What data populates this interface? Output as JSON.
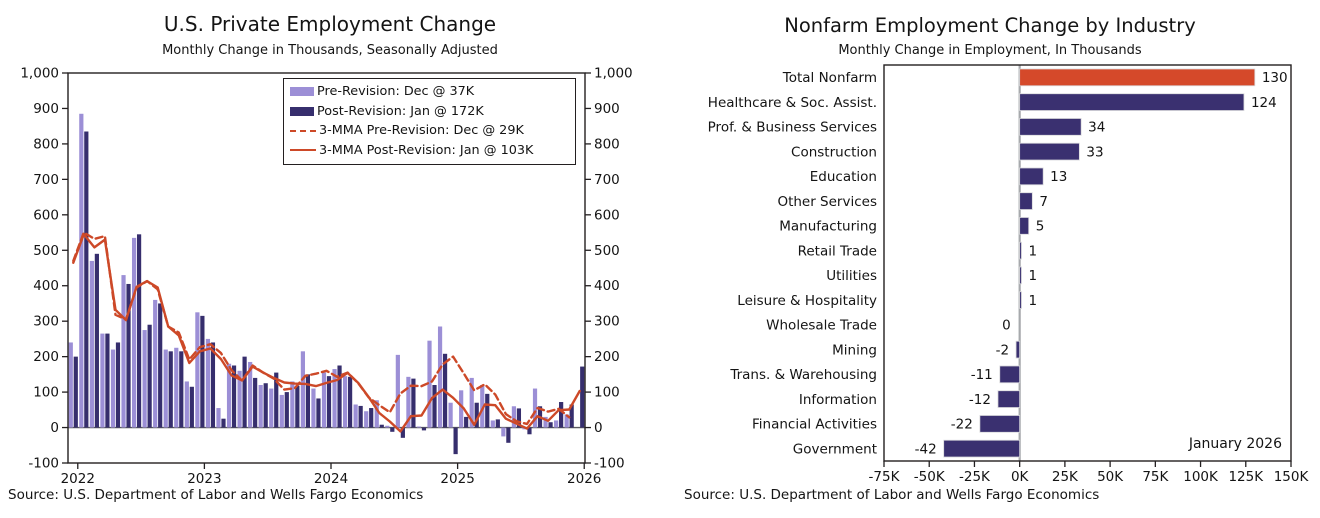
{
  "colors": {
    "pre_bar": "#9c8fd6",
    "post_bar": "#362e6d",
    "mma_line": "#cd4928",
    "industry_bar": "#3a3070",
    "industry_highlight": "#d5492a",
    "axis": "#231f20",
    "zero_line_left": "#5b5b5f",
    "zero_line_right": "#a7a9ac"
  },
  "chart_data": [
    {
      "type": "bar",
      "title": "U.S. Private Employment Change",
      "subtitle": "Monthly Change in Thousands, Seasonally Adjusted",
      "source": "Source: U.S. Department of Labor and Wells Fargo Economics",
      "x_start": "Jan 2022",
      "x_end": "Jan 2026",
      "ylim": [
        -100,
        1000
      ],
      "ytick_step": 100,
      "grid": false,
      "legend_position": "top-right",
      "year_ticks": [
        {
          "label": "2022",
          "month_index": 0
        },
        {
          "label": "2023",
          "month_index": 12
        },
        {
          "label": "2024",
          "month_index": 24
        },
        {
          "label": "2025",
          "month_index": 36
        },
        {
          "label": "2026",
          "month_index": 48
        }
      ],
      "series": [
        {
          "name": "Pre-Revision: Dec @ 37K",
          "type": "bar",
          "color": "#9c8fd6",
          "values": [
            240,
            885,
            470,
            265,
            220,
            430,
            535,
            275,
            360,
            220,
            225,
            130,
            325,
            250,
            55,
            180,
            160,
            185,
            120,
            110,
            92,
            130,
            215,
            110,
            155,
            165,
            145,
            65,
            46,
            77,
            5,
            205,
            143,
            3,
            245,
            285,
            70,
            105,
            140,
            120,
            20,
            -25,
            60,
            -5,
            110,
            30,
            20,
            37,
            null
          ]
        },
        {
          "name": "Post-Revision: Jan @ 172K",
          "type": "bar",
          "color": "#362e6d",
          "values": [
            200,
            835,
            490,
            265,
            240,
            405,
            545,
            290,
            350,
            215,
            215,
            115,
            315,
            240,
            25,
            175,
            200,
            140,
            125,
            155,
            100,
            118,
            150,
            82,
            145,
            175,
            143,
            61,
            55,
            8,
            -12,
            -29,
            138,
            -8,
            120,
            208,
            -75,
            30,
            70,
            95,
            23,
            -43,
            54,
            -19,
            60,
            15,
            72,
            65,
            172
          ]
        },
        {
          "name": "3-MMA Pre-Revision: Dec @ 29K",
          "type": "line",
          "dash": true,
          "color": "#cd4928",
          "values": [
            470,
            550,
            532,
            540,
            318,
            305,
            395,
            413,
            390,
            285,
            268,
            192,
            227,
            235,
            210,
            162,
            132,
            175,
            155,
            138,
            107,
            111,
            146,
            152,
            160,
            143,
            155,
            125,
            85,
            63,
            43,
            96,
            118,
            117,
            130,
            178,
            200,
            153,
            105,
            122,
            93,
            38,
            18,
            10,
            55,
            45,
            53,
            29,
            null
          ]
        },
        {
          "name": "3-MMA Post-Revision: Jan @ 103K",
          "type": "line",
          "dash": false,
          "color": "#cd4928",
          "values": [
            465,
            545,
            508,
            530,
            332,
            303,
            397,
            413,
            395,
            285,
            260,
            182,
            215,
            223,
            193,
            147,
            133,
            172,
            155,
            140,
            127,
            124,
            123,
            117,
            126,
            134,
            154,
            126,
            86,
            41,
            17,
            -11,
            32,
            34,
            83,
            107,
            84,
            54,
            8,
            65,
            63,
            25,
            11,
            -3,
            32,
            19,
            49,
            51,
            103
          ]
        }
      ]
    },
    {
      "type": "bar",
      "orientation": "horizontal",
      "title": "Nonfarm Employment Change by Industry",
      "subtitle": "Monthly Change in Employment, In Thousands",
      "source": "Source: U.S. Department of Labor and Wells Fargo Economics",
      "annotation": "January 2026",
      "xlim_thousands": [
        -75,
        150
      ],
      "x_ticks": [
        "-75K",
        "-50K",
        "-25K",
        "0K",
        "25K",
        "50K",
        "75K",
        "100K",
        "125K",
        "150K"
      ],
      "categories": [
        "Total Nonfarm",
        "Healthcare & Soc. Assist.",
        "Prof. & Business Services",
        "Construction",
        "Education",
        "Other Services",
        "Manufacturing",
        "Retail Trade",
        "Utilities",
        "Leisure & Hospitality",
        "Wholesale Trade",
        "Mining",
        "Trans. & Warehousing",
        "Information",
        "Financial Activities",
        "Government"
      ],
      "values": [
        130,
        124,
        34,
        33,
        13,
        7,
        5,
        1,
        1,
        1,
        0,
        -2,
        -11,
        -12,
        -22,
        -42
      ],
      "highlight_index": 0,
      "highlight_color": "#d5492a",
      "bar_color": "#3a3070"
    }
  ]
}
